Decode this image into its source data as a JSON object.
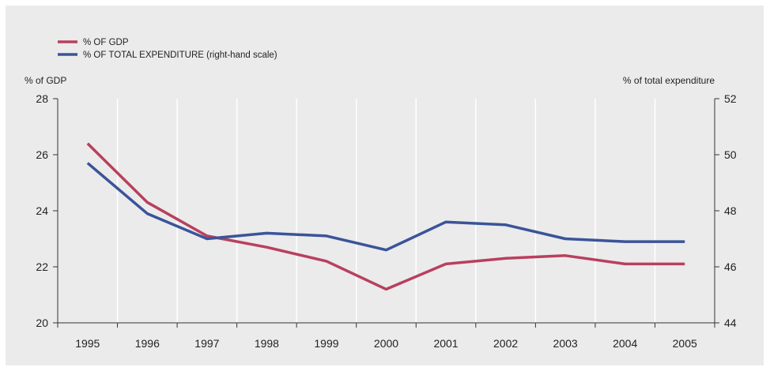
{
  "chart_data": {
    "type": "line",
    "x": [
      "1995",
      "1996",
      "1997",
      "1998",
      "1999",
      "2000",
      "2001",
      "2002",
      "2003",
      "2004",
      "2005"
    ],
    "series": [
      {
        "name": "% OF GDP",
        "axis": "left",
        "color": "#b8405e",
        "values": [
          26.4,
          24.3,
          23.1,
          22.7,
          22.2,
          21.2,
          22.1,
          22.3,
          22.4,
          22.1,
          22.1
        ]
      },
      {
        "name": "% OF TOTAL EXPENDITURE (right-hand scale)",
        "axis": "right",
        "color": "#3a5499",
        "values": [
          49.7,
          47.9,
          47.0,
          47.2,
          47.1,
          46.6,
          47.6,
          47.5,
          47.0,
          46.9,
          46.9
        ]
      }
    ],
    "y_left": {
      "label": "% of GDP",
      "range": [
        20,
        28
      ],
      "ticks": [
        "20",
        "22",
        "24",
        "26",
        "28"
      ]
    },
    "y_right": {
      "label": "% of total expenditure",
      "range": [
        44,
        52
      ],
      "ticks": [
        "44",
        "46",
        "48",
        "50",
        "52"
      ]
    },
    "grid": "vertical",
    "legend_position": "top-left"
  }
}
